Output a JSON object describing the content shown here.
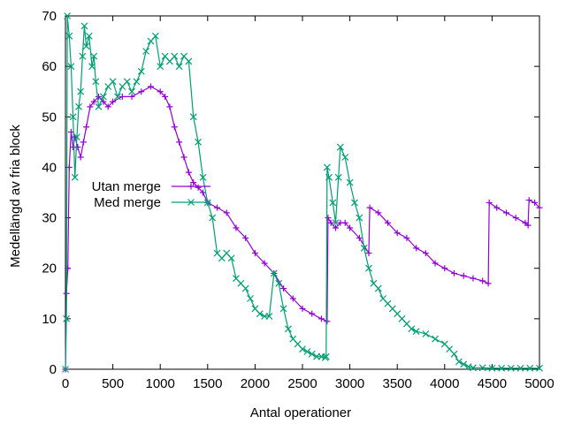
{
  "chart_data": {
    "type": "line",
    "xlabel": "Antal operationer",
    "ylabel": "Medellängd av fria block",
    "xlim": [
      0,
      5000
    ],
    "ylim": [
      0,
      70
    ],
    "xticks": [
      "0",
      "500",
      "1000",
      "1500",
      "2000",
      "2500",
      "3000",
      "3500",
      "4000",
      "4500",
      "5000"
    ],
    "yticks": [
      "0",
      "10",
      "20",
      "30",
      "40",
      "50",
      "60",
      "70"
    ],
    "grid": false,
    "legend_position": "middle-left",
    "series": [
      {
        "name": "Utan merge",
        "color": "#9400d3",
        "marker": "plus",
        "points": [
          [
            0,
            0
          ],
          [
            10,
            15
          ],
          [
            25,
            20
          ],
          [
            40,
            40
          ],
          [
            60,
            47
          ],
          [
            80,
            44
          ],
          [
            100,
            46
          ],
          [
            130,
            44
          ],
          [
            160,
            42
          ],
          [
            190,
            45
          ],
          [
            220,
            48
          ],
          [
            260,
            52
          ],
          [
            300,
            53
          ],
          [
            350,
            54
          ],
          [
            400,
            53
          ],
          [
            450,
            52
          ],
          [
            500,
            53
          ],
          [
            600,
            54
          ],
          [
            700,
            54
          ],
          [
            800,
            55
          ],
          [
            900,
            56
          ],
          [
            1000,
            55
          ],
          [
            1050,
            54
          ],
          [
            1100,
            52
          ],
          [
            1150,
            48
          ],
          [
            1200,
            45
          ],
          [
            1250,
            42
          ],
          [
            1300,
            39
          ],
          [
            1350,
            37
          ],
          [
            1400,
            36
          ],
          [
            1450,
            35
          ],
          [
            1500,
            33
          ],
          [
            1600,
            32
          ],
          [
            1700,
            31
          ],
          [
            1800,
            28
          ],
          [
            1900,
            26
          ],
          [
            2000,
            23
          ],
          [
            2100,
            21
          ],
          [
            2200,
            19
          ],
          [
            2300,
            16
          ],
          [
            2400,
            14
          ],
          [
            2500,
            12
          ],
          [
            2600,
            11
          ],
          [
            2700,
            10
          ],
          [
            2760,
            9.5
          ],
          [
            2770,
            30
          ],
          [
            2800,
            29
          ],
          [
            2850,
            28
          ],
          [
            2900,
            29
          ],
          [
            2950,
            29
          ],
          [
            3000,
            28
          ],
          [
            3100,
            26
          ],
          [
            3200,
            23
          ],
          [
            3210,
            32
          ],
          [
            3300,
            31
          ],
          [
            3400,
            29
          ],
          [
            3500,
            27
          ],
          [
            3600,
            26
          ],
          [
            3700,
            24
          ],
          [
            3800,
            23
          ],
          [
            3900,
            21
          ],
          [
            4000,
            20
          ],
          [
            4100,
            19
          ],
          [
            4200,
            18.5
          ],
          [
            4300,
            18
          ],
          [
            4400,
            17.5
          ],
          [
            4460,
            17
          ],
          [
            4470,
            33
          ],
          [
            4550,
            32
          ],
          [
            4650,
            31
          ],
          [
            4750,
            30
          ],
          [
            4850,
            29
          ],
          [
            4880,
            28.5
          ],
          [
            4890,
            33.5
          ],
          [
            4950,
            33
          ],
          [
            5000,
            32
          ]
        ]
      },
      {
        "name": "Med merge",
        "color": "#009e73",
        "marker": "x",
        "points": [
          [
            0,
            0
          ],
          [
            10,
            10
          ],
          [
            20,
            70
          ],
          [
            40,
            66
          ],
          [
            60,
            60
          ],
          [
            80,
            50
          ],
          [
            100,
            38
          ],
          [
            120,
            46
          ],
          [
            140,
            52
          ],
          [
            160,
            55
          ],
          [
            180,
            62
          ],
          [
            200,
            68
          ],
          [
            220,
            64
          ],
          [
            250,
            66
          ],
          [
            280,
            60
          ],
          [
            300,
            62
          ],
          [
            320,
            57
          ],
          [
            350,
            52
          ],
          [
            400,
            54
          ],
          [
            450,
            56
          ],
          [
            500,
            57
          ],
          [
            550,
            54
          ],
          [
            600,
            56
          ],
          [
            650,
            57
          ],
          [
            700,
            55
          ],
          [
            750,
            57
          ],
          [
            800,
            59
          ],
          [
            850,
            63
          ],
          [
            900,
            65
          ],
          [
            950,
            66
          ],
          [
            1000,
            60
          ],
          [
            1050,
            62
          ],
          [
            1100,
            61
          ],
          [
            1150,
            62
          ],
          [
            1200,
            60
          ],
          [
            1250,
            62
          ],
          [
            1300,
            61
          ],
          [
            1350,
            50
          ],
          [
            1400,
            45
          ],
          [
            1450,
            38
          ],
          [
            1500,
            33
          ],
          [
            1550,
            30
          ],
          [
            1600,
            23
          ],
          [
            1650,
            22
          ],
          [
            1700,
            23
          ],
          [
            1750,
            22
          ],
          [
            1800,
            18
          ],
          [
            1850,
            17
          ],
          [
            1900,
            16
          ],
          [
            1950,
            14
          ],
          [
            2000,
            12
          ],
          [
            2050,
            11
          ],
          [
            2100,
            10.5
          ],
          [
            2150,
            10.5
          ],
          [
            2200,
            19
          ],
          [
            2250,
            17
          ],
          [
            2300,
            12
          ],
          [
            2350,
            8
          ],
          [
            2400,
            6
          ],
          [
            2450,
            5
          ],
          [
            2500,
            4
          ],
          [
            2550,
            3.5
          ],
          [
            2600,
            3
          ],
          [
            2650,
            2.5
          ],
          [
            2700,
            2.5
          ],
          [
            2740,
            2.3
          ],
          [
            2750,
            2.5
          ],
          [
            2760,
            40
          ],
          [
            2780,
            38
          ],
          [
            2820,
            33
          ],
          [
            2850,
            29
          ],
          [
            2880,
            38
          ],
          [
            2900,
            44
          ],
          [
            2950,
            42
          ],
          [
            3000,
            37
          ],
          [
            3050,
            33
          ],
          [
            3100,
            30
          ],
          [
            3150,
            24
          ],
          [
            3200,
            20
          ],
          [
            3250,
            17
          ],
          [
            3300,
            16
          ],
          [
            3350,
            14
          ],
          [
            3400,
            13
          ],
          [
            3450,
            12
          ],
          [
            3500,
            11
          ],
          [
            3550,
            10
          ],
          [
            3600,
            9
          ],
          [
            3650,
            8
          ],
          [
            3700,
            7.5
          ],
          [
            3800,
            7
          ],
          [
            3900,
            6
          ],
          [
            4000,
            5
          ],
          [
            4050,
            4
          ],
          [
            4100,
            3
          ],
          [
            4150,
            1.5
          ],
          [
            4200,
            1
          ],
          [
            4250,
            0.5
          ],
          [
            4300,
            0.3
          ],
          [
            4400,
            0.3
          ],
          [
            4500,
            0.2
          ],
          [
            4600,
            0.2
          ],
          [
            4700,
            0.2
          ],
          [
            4800,
            0.2
          ],
          [
            4900,
            0.2
          ],
          [
            5000,
            0.2
          ]
        ]
      }
    ]
  }
}
